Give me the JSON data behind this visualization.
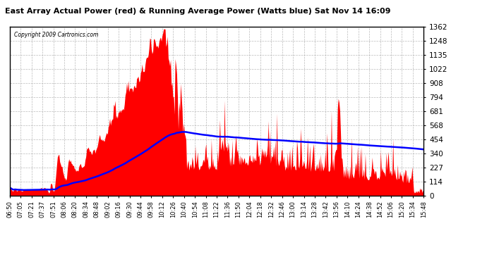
{
  "title": "East Array Actual Power (red) & Running Average Power (Watts blue) Sat Nov 14 16:09",
  "copyright": "Copyright 2009 Cartronics.com",
  "yticks": [
    0.0,
    113.5,
    227.0,
    340.5,
    454.0,
    567.5,
    681.0,
    794.5,
    908.0,
    1021.5,
    1135.0,
    1248.5,
    1362.0
  ],
  "ymax": 1362.0,
  "ymin": 0.0,
  "bg_color": "#ffffff",
  "plot_bg_color": "#ffffff",
  "grid_color": "#aaaaaa",
  "bar_color": "red",
  "avg_color": "blue",
  "x_labels": [
    "06:50",
    "07:05",
    "07:21",
    "07:37",
    "07:51",
    "08:06",
    "08:20",
    "08:34",
    "08:48",
    "09:02",
    "09:16",
    "09:30",
    "09:44",
    "09:58",
    "10:12",
    "10:26",
    "10:40",
    "10:54",
    "11:08",
    "11:22",
    "11:36",
    "11:50",
    "12:04",
    "12:18",
    "12:32",
    "12:46",
    "13:00",
    "13:14",
    "13:28",
    "13:42",
    "13:56",
    "14:10",
    "14:24",
    "14:38",
    "14:52",
    "15:06",
    "15:20",
    "15:34",
    "15:48"
  ]
}
